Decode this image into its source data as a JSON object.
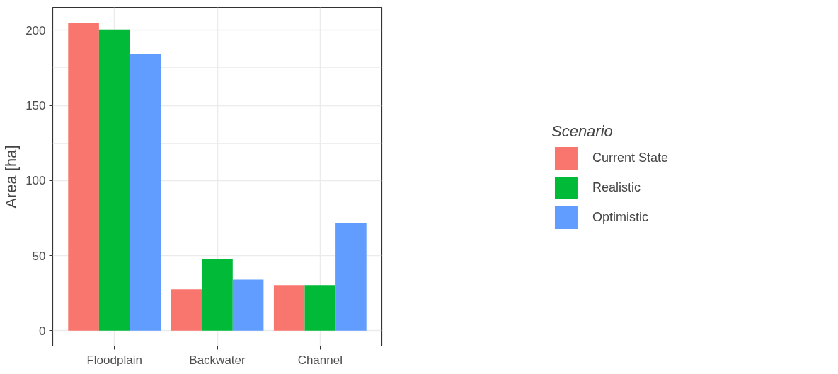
{
  "chart_data": {
    "type": "bar",
    "ylabel": "Area [ha]",
    "legend_title": "Scenario",
    "categories": [
      "Floodplain",
      "Backwater",
      "Channel"
    ],
    "series": [
      {
        "name": "Current State",
        "color": "#f8766d",
        "values": [
          205,
          27.5,
          30.3
        ]
      },
      {
        "name": "Realistic",
        "color": "#00ba38",
        "values": [
          200.5,
          47.6,
          30.3
        ]
      },
      {
        "name": "Optimistic",
        "color": "#619cff",
        "values": [
          184,
          34,
          71.8
        ]
      }
    ],
    "ylim": [
      -10.25,
      215.25
    ],
    "yticks": [
      0,
      50,
      100,
      150,
      200
    ],
    "grid": true,
    "legend": "right"
  }
}
